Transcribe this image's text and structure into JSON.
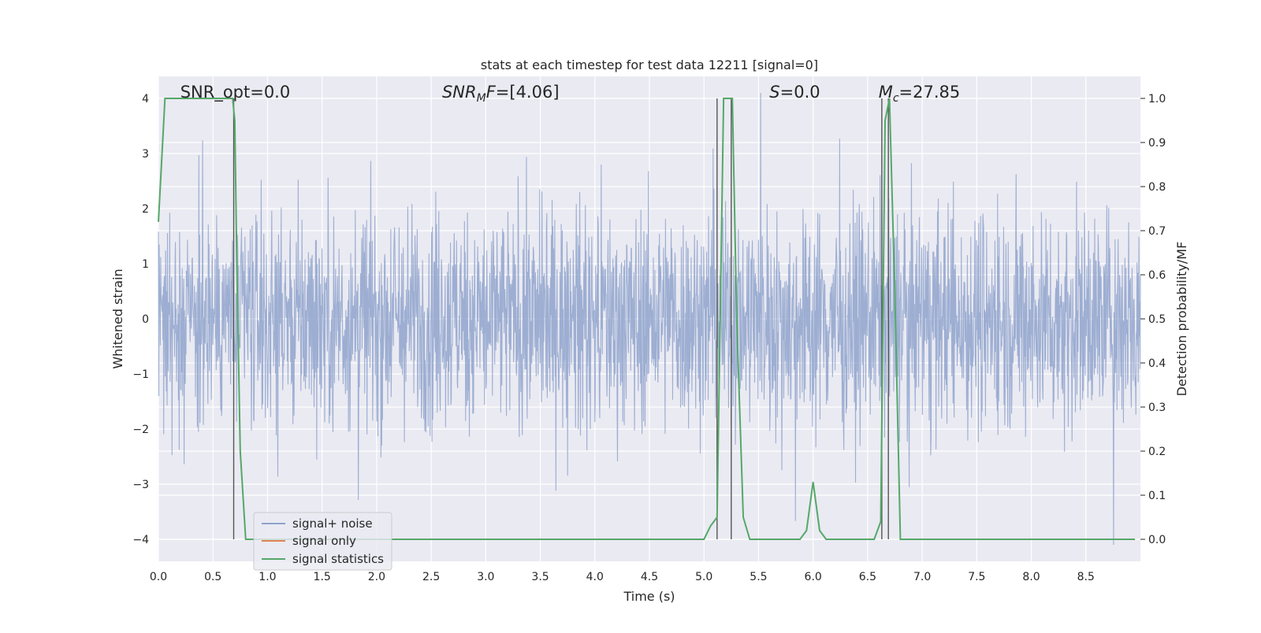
{
  "chart_data": {
    "type": "line",
    "title": "stats at each timestep for test data 12211 [signal=0]",
    "xlabel": "Time (s)",
    "ylabel": "Whitened strain",
    "ylabel_right": "Detection probability/MF",
    "xlim": [
      0.0,
      9.0
    ],
    "ylim": [
      -4.4,
      4.4
    ],
    "ylim_right": [
      -0.05,
      1.05
    ],
    "xticks": [
      "0.0",
      "0.5",
      "1.0",
      "1.5",
      "2.0",
      "2.5",
      "3.0",
      "3.5",
      "4.0",
      "4.5",
      "5.0",
      "5.5",
      "6.0",
      "6.5",
      "7.0",
      "7.5",
      "8.0",
      "8.5"
    ],
    "xtick_values": [
      0.0,
      0.5,
      1.0,
      1.5,
      2.0,
      2.5,
      3.0,
      3.5,
      4.0,
      4.5,
      5.0,
      5.5,
      6.0,
      6.5,
      7.0,
      7.5,
      8.0,
      8.5
    ],
    "yticks_left": [
      "4",
      "3",
      "2",
      "1",
      "0",
      "−1",
      "−2",
      "−3",
      "−4"
    ],
    "ytick_values_left": [
      4,
      3,
      2,
      1,
      0,
      -1,
      -2,
      -3,
      -4
    ],
    "yticks_right": [
      "1.0",
      "0.9",
      "0.8",
      "0.7",
      "0.6",
      "0.5",
      "0.4",
      "0.3",
      "0.2",
      "0.1",
      "0.0"
    ],
    "ytick_values_right": [
      1.0,
      0.9,
      0.8,
      0.7,
      0.6,
      0.5,
      0.4,
      0.3,
      0.2,
      0.1,
      0.0
    ],
    "grid": true,
    "legend_position": "lower-left",
    "annotations": [
      {
        "text": "SNR_opt=0.0",
        "x": 0.2,
        "y": 4.1
      },
      {
        "text": "SNR_MF=[4.06]",
        "x": 2.6,
        "y": 4.1
      },
      {
        "text": "S=0.0",
        "x": 5.6,
        "y": 4.1
      },
      {
        "text": "M_c=27.85",
        "x": 6.6,
        "y": 4.1
      }
    ],
    "series": [
      {
        "name": "signal+ noise",
        "color": "#8fa3cc",
        "axis": "left",
        "kind": "noise",
        "note_values": "dense whitened noise, typical amplitude ±1.6, spikes to ±4"
      },
      {
        "name": "signal only",
        "color": "#dd8452",
        "axis": "left",
        "x": [],
        "y": []
      },
      {
        "name": "signal statistics",
        "color": "#55a868",
        "axis": "right",
        "x": [
          0.0,
          0.06,
          0.12,
          0.2,
          0.3,
          0.4,
          0.5,
          0.6,
          0.68,
          0.7,
          0.72,
          0.75,
          0.8,
          0.9,
          1.0,
          2.0,
          3.0,
          4.0,
          5.0,
          5.06,
          5.12,
          5.18,
          5.22,
          5.26,
          5.3,
          5.36,
          5.42,
          5.5,
          5.7,
          5.88,
          5.94,
          6.0,
          6.06,
          6.12,
          6.3,
          6.56,
          6.62,
          6.66,
          6.7,
          6.75,
          6.8,
          7.0,
          8.0,
          8.95
        ],
        "y": [
          0.72,
          1.0,
          1.0,
          1.0,
          1.0,
          1.0,
          1.0,
          1.0,
          1.0,
          0.95,
          0.6,
          0.2,
          0.0,
          0.0,
          0.0,
          0.0,
          0.0,
          0.0,
          0.0,
          0.03,
          0.05,
          1.0,
          1.0,
          1.0,
          0.5,
          0.05,
          0.0,
          0.0,
          0.0,
          0.0,
          0.02,
          0.13,
          0.02,
          0.0,
          0.0,
          0.0,
          0.04,
          0.95,
          1.0,
          0.55,
          0.0,
          0.0,
          0.0,
          0.0
        ]
      }
    ],
    "vlines": [
      {
        "x": 0.69,
        "color": "#555555"
      },
      {
        "x": 5.12,
        "color": "#555555"
      },
      {
        "x": 5.25,
        "color": "#555555"
      },
      {
        "x": 6.63,
        "color": "#555555"
      },
      {
        "x": 6.69,
        "color": "#555555"
      }
    ]
  }
}
